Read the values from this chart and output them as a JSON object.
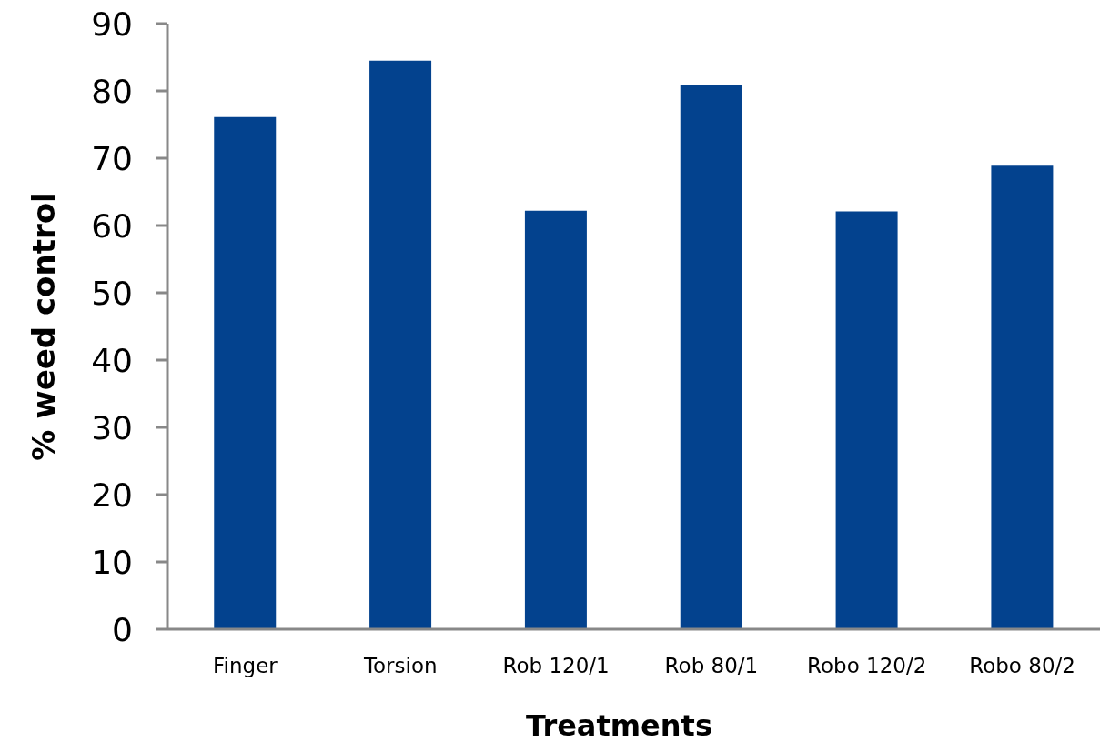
{
  "chart_data": {
    "type": "bar",
    "categories": [
      "Finger",
      "Torsion",
      "Rob 120/1",
      "Rob 80/1",
      "Robo 120/2",
      "Robo 80/2"
    ],
    "values": [
      76.1,
      84.5,
      62.2,
      80.8,
      62.1,
      68.9
    ],
    "color": "#03428e",
    "ylim": [
      0,
      90
    ],
    "yticks": [
      0,
      10,
      20,
      30,
      40,
      50,
      60,
      70,
      80,
      90
    ],
    "xlabel": "Treatments",
    "ylabel": "% weed control"
  }
}
